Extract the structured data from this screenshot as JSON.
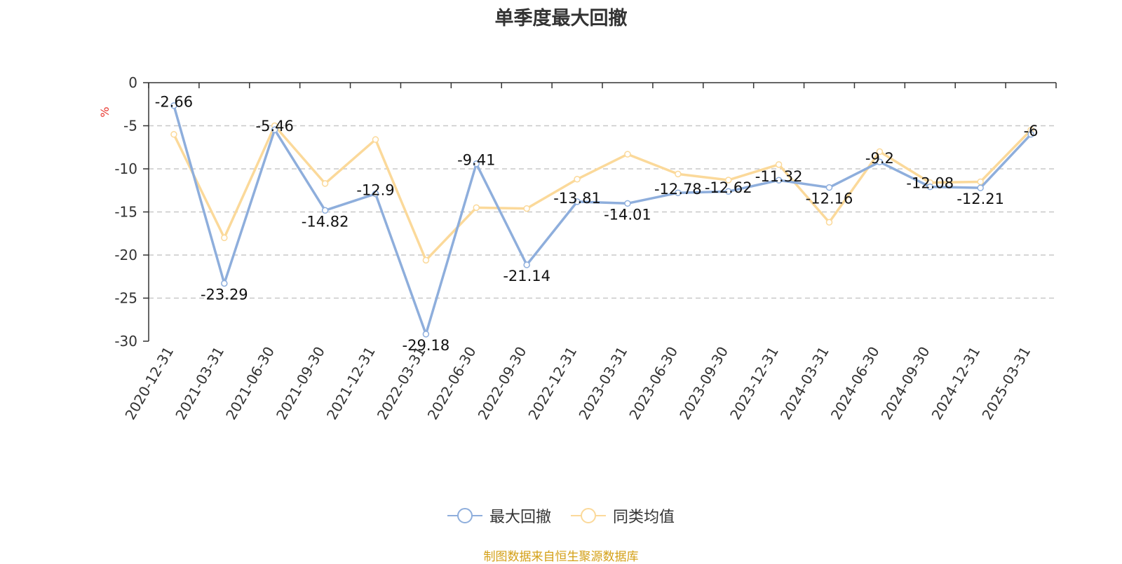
{
  "title": "单季度最大回撤",
  "source": "制图数据来自恒生聚源数据库",
  "colors": {
    "series1": "#8eaedc",
    "series2": "#fbd99a",
    "unit": "#e8342c",
    "source": "#d4a017"
  },
  "chart_data": {
    "type": "line",
    "title": "单季度最大回撤",
    "ylabel": "%",
    "ylim": [
      -30,
      0
    ],
    "yticks": [
      0,
      -5,
      -10,
      -15,
      -20,
      -25,
      -30
    ],
    "grid": true,
    "legend_position": "bottom",
    "categories": [
      "2020-12-31",
      "2021-03-31",
      "2021-06-30",
      "2021-09-30",
      "2021-12-31",
      "2022-03-31",
      "2022-06-30",
      "2022-09-30",
      "2022-12-31",
      "2023-03-31",
      "2023-06-30",
      "2023-09-30",
      "2023-12-31",
      "2024-03-31",
      "2024-06-30",
      "2024-09-30",
      "2024-12-31",
      "2025-03-31"
    ],
    "series": [
      {
        "name": "最大回撤",
        "values": [
          -2.66,
          -23.29,
          -5.46,
          -14.82,
          -12.9,
          -29.18,
          -9.41,
          -21.14,
          -13.81,
          -14.01,
          -12.78,
          -12.62,
          -11.32,
          -12.16,
          -9.2,
          -12.08,
          -12.21,
          -6
        ]
      },
      {
        "name": "同类均值",
        "values": [
          -6.0,
          -18.0,
          -5.0,
          -11.7,
          -6.6,
          -20.6,
          -14.5,
          -14.6,
          -11.2,
          -8.3,
          -10.6,
          -11.3,
          -9.5,
          -16.2,
          -8.0,
          -11.6,
          -11.5,
          -5.5
        ]
      }
    ]
  }
}
